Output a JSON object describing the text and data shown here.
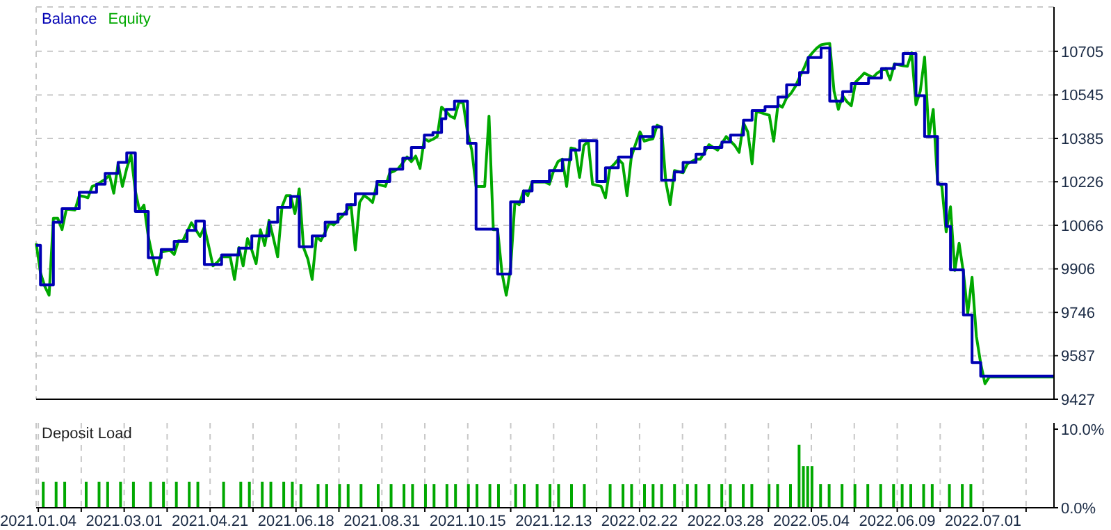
{
  "chart_data": [
    {
      "type": "line",
      "legend": "top left",
      "grid": true,
      "tick_labels": "y",
      "categories": [
        "2021.01.04",
        null,
        null,
        null,
        null,
        null,
        null,
        null,
        null,
        null,
        null,
        null,
        null,
        null,
        null,
        null,
        null,
        null,
        null,
        null,
        "2021.03.01",
        null,
        null,
        null,
        null,
        null,
        null,
        null,
        null,
        null,
        null,
        null,
        null,
        null,
        null,
        null,
        null,
        null,
        null,
        null,
        "2021.04.21",
        null,
        null,
        null,
        null,
        null,
        null,
        null,
        null,
        null,
        null,
        null,
        null,
        null,
        null,
        null,
        null,
        null,
        null,
        null,
        "2021.06.18",
        null,
        null,
        null,
        null,
        null,
        null,
        null,
        null,
        null,
        null,
        null,
        null,
        null,
        null,
        null,
        null,
        null,
        null,
        null,
        "2021.08.31",
        null,
        null,
        null,
        null,
        null,
        null,
        null,
        null,
        null,
        null,
        null,
        null,
        null,
        null,
        null,
        null,
        null,
        null,
        null,
        "2021.10.15",
        null,
        null,
        null,
        null,
        null,
        null,
        null,
        null,
        null,
        null,
        null,
        null,
        null,
        null,
        null,
        null,
        null,
        null,
        null,
        "2021.12.13",
        null,
        null,
        null,
        null,
        null,
        null,
        null,
        null,
        null,
        null,
        null,
        null,
        null,
        null,
        null,
        null,
        null,
        null,
        null,
        "2022.02.22",
        null,
        null,
        null,
        null,
        null,
        null,
        null,
        null,
        null,
        null,
        null,
        null,
        null,
        null,
        null,
        null,
        null,
        null,
        null,
        "2022.03.28",
        null,
        null,
        null,
        null,
        null,
        null,
        null,
        null,
        null,
        null,
        null,
        null,
        null,
        null,
        null,
        null,
        null,
        null,
        null,
        "2022.05.04",
        null,
        null,
        null,
        null,
        null,
        null,
        null,
        null,
        null,
        null,
        null,
        null,
        null,
        null,
        null,
        null,
        null,
        null,
        null,
        "2022.06.09",
        null,
        null,
        null,
        null,
        null,
        null,
        null,
        null,
        null,
        null,
        null,
        null,
        null,
        null,
        null,
        null,
        null,
        null,
        null,
        "2022.07.01",
        null,
        null,
        null,
        null,
        null,
        null,
        null,
        null,
        null,
        null,
        null,
        null,
        null,
        null,
        null,
        null
      ],
      "ylim": [
        9427,
        10868
      ],
      "yticks": [
        9427,
        9587,
        9746,
        9906,
        10066,
        10226,
        10385,
        10545,
        10705
      ],
      "series": [
        {
          "name": "Balance",
          "type": "step",
          "color": "#0000b4",
          "values": [
            9992,
            9847,
            9847,
            9847,
            10077,
            10077,
            10127,
            10127,
            10127,
            10127,
            10187,
            10187,
            10187,
            10187,
            10217,
            10217,
            10257,
            10257,
            10257,
            10297,
            10297,
            10332,
            10332,
            10117,
            10117,
            10117,
            9947,
            9947,
            9947,
            9977,
            9977,
            9977,
            10007,
            10007,
            10007,
            10047,
            10047,
            10082,
            10082,
            9922,
            9922,
            9922,
            9922,
            9957,
            9957,
            9957,
            9957,
            9982,
            9982,
            9982,
            10027,
            10027,
            10027,
            10027,
            10077,
            10077,
            10132,
            10132,
            10132,
            10172,
            10172,
            9987,
            9987,
            9987,
            10027,
            10027,
            10027,
            10077,
            10077,
            10077,
            10107,
            10107,
            10142,
            10142,
            10182,
            10182,
            10182,
            10182,
            10182,
            10227,
            10227,
            10227,
            10272,
            10272,
            10272,
            10312,
            10312,
            10352,
            10352,
            10352,
            10397,
            10397,
            10407,
            10407,
            10457,
            10492,
            10492,
            10522,
            10522,
            10522,
            10367,
            10367,
            10052,
            10052,
            10052,
            10052,
            10052,
            9887,
            9887,
            9887,
            10152,
            10152,
            10152,
            10192,
            10192,
            10227,
            10227,
            10227,
            10227,
            10267,
            10267,
            10267,
            10307,
            10307,
            10342,
            10342,
            10377,
            10377,
            10377,
            10377,
            10227,
            10227,
            10277,
            10277,
            10277,
            10317,
            10317,
            10317,
            10347,
            10347,
            10392,
            10392,
            10392,
            10427,
            10427,
            10232,
            10232,
            10232,
            10262,
            10262,
            10297,
            10297,
            10297,
            10327,
            10327,
            10352,
            10352,
            10352,
            10352,
            10372,
            10372,
            10397,
            10397,
            10397,
            10452,
            10452,
            10487,
            10487,
            10487,
            10502,
            10502,
            10502,
            10537,
            10537,
            10582,
            10582,
            10582,
            10627,
            10627,
            10682,
            10682,
            10682,
            10717,
            10717,
            10522,
            10522,
            10522,
            10557,
            10557,
            10587,
            10587,
            10587,
            10587,
            10607,
            10607,
            10607,
            10642,
            10642,
            10642,
            10657,
            10657,
            10697,
            10697,
            10697,
            10542,
            10542,
            10392,
            10392,
            10392,
            10217,
            10217,
            10062,
            9902,
            9902,
            9902,
            9737,
            9737,
            9562,
            9562,
            9512,
            9512,
            9512,
            9512,
            9512,
            9512,
            9512,
            9512,
            9512,
            9512,
            9512,
            9512,
            9512,
            9512,
            9512,
            9512,
            9512,
            9512
          ]
        },
        {
          "name": "Equity",
          "type": "line",
          "color": "#00a800",
          "values": [
            10000,
            9892,
            9842,
            9809,
            10092,
            10092,
            10050,
            10125,
            10124,
            10122,
            10175,
            10172,
            10167,
            10209,
            10214,
            10225,
            10235,
            10250,
            10184,
            10292,
            10209,
            10275,
            10325,
            10192,
            10117,
            10140,
            10025,
            9950,
            9884,
            9967,
            9971,
            9975,
            9959,
            10009,
            10009,
            10042,
            10075,
            10050,
            10025,
            10059,
            9990,
            9917,
            9930,
            9950,
            9950,
            9950,
            9867,
            9984,
            9917,
            10017,
            9975,
            9925,
            10050,
            9992,
            10084,
            10020,
            9950,
            10134,
            10175,
            10175,
            10109,
            10200,
            9984,
            9942,
            9867,
            10025,
            10009,
            10040,
            10075,
            10067,
            10085,
            10100,
            10120,
            10142,
            9975,
            10150,
            10175,
            10165,
            10150,
            10217,
            10213,
            10209,
            10259,
            10265,
            10275,
            10295,
            10317,
            10300,
            10320,
            10275,
            10384,
            10375,
            10382,
            10392,
            10500,
            10485,
            10467,
            10459,
            10517,
            10517,
            10409,
            10342,
            10209,
            10209,
            10209,
            10467,
            10050,
            10050,
            9892,
            9809,
            9909,
            10150,
            10142,
            10192,
            10175,
            10225,
            10225,
            10225,
            10225,
            10217,
            10267,
            10300,
            10309,
            10209,
            10350,
            10346,
            10242,
            10359,
            10375,
            10217,
            10213,
            10209,
            10167,
            10275,
            10290,
            10309,
            10292,
            10175,
            10317,
            10365,
            10409,
            10375,
            10380,
            10384,
            10434,
            10425,
            10225,
            10142,
            10267,
            10263,
            10259,
            10292,
            10300,
            10309,
            10309,
            10335,
            10362,
            10352,
            10342,
            10367,
            10392,
            10375,
            10359,
            10334,
            10442,
            10409,
            10292,
            10484,
            10480,
            10475,
            10470,
            10375,
            10509,
            10500,
            10534,
            10550,
            10575,
            10610,
            10642,
            10680,
            10700,
            10717,
            10729,
            10732,
            10734,
            10559,
            10492,
            10542,
            10520,
            10505,
            10592,
            10608,
            10625,
            10617,
            10609,
            10625,
            10635,
            10642,
            10600,
            10659,
            10655,
            10652,
            10650,
            10700,
            10509,
            10559,
            10684,
            10392,
            10492,
            10225,
            10209,
            10042,
            10134,
            9900,
            10000,
            9892,
            9742,
            9875,
            9659,
            9559,
            9484,
            9509,
            9509,
            9509,
            9509,
            9509,
            9509,
            9509,
            9509,
            9509,
            9509,
            9509,
            9509,
            9509,
            9509,
            9509,
            9509
          ]
        }
      ]
    },
    {
      "type": "bar",
      "title": "Deposit Load",
      "grid": "x",
      "color": "#00a800",
      "categories": [
        "2021.01.04",
        null,
        null,
        null,
        null,
        null,
        null,
        null,
        null,
        null,
        null,
        null,
        null,
        null,
        null,
        null,
        null,
        null,
        null,
        null,
        "2021.03.01",
        null,
        null,
        null,
        null,
        null,
        null,
        null,
        null,
        null,
        null,
        null,
        null,
        null,
        null,
        null,
        null,
        null,
        null,
        null,
        "2021.04.21",
        null,
        null,
        null,
        null,
        null,
        null,
        null,
        null,
        null,
        null,
        null,
        null,
        null,
        null,
        null,
        null,
        null,
        null,
        null,
        "2021.06.18",
        null,
        null,
        null,
        null,
        null,
        null,
        null,
        null,
        null,
        null,
        null,
        null,
        null,
        null,
        null,
        null,
        null,
        null,
        null,
        "2021.08.31",
        null,
        null,
        null,
        null,
        null,
        null,
        null,
        null,
        null,
        null,
        null,
        null,
        null,
        null,
        null,
        null,
        null,
        null,
        null,
        "2021.10.15",
        null,
        null,
        null,
        null,
        null,
        null,
        null,
        null,
        null,
        null,
        null,
        null,
        null,
        null,
        null,
        null,
        null,
        null,
        null,
        "2021.12.13",
        null,
        null,
        null,
        null,
        null,
        null,
        null,
        null,
        null,
        null,
        null,
        null,
        null,
        null,
        null,
        null,
        null,
        null,
        null,
        "2022.02.22",
        null,
        null,
        null,
        null,
        null,
        null,
        null,
        null,
        null,
        null,
        null,
        null,
        null,
        null,
        null,
        null,
        null,
        null,
        null,
        "2022.03.28",
        null,
        null,
        null,
        null,
        null,
        null,
        null,
        null,
        null,
        null,
        null,
        null,
        null,
        null,
        null,
        null,
        null,
        null,
        null,
        "2022.05.04",
        null,
        null,
        null,
        null,
        null,
        null,
        null,
        null,
        null,
        null,
        null,
        null,
        null,
        null,
        null,
        null,
        null,
        null,
        null,
        "2022.06.09",
        null,
        null,
        null,
        null,
        null,
        null,
        null,
        null,
        null,
        null,
        null,
        null,
        null,
        null,
        null,
        null,
        null,
        null,
        null,
        "2022.07.01",
        null,
        null,
        null,
        null,
        null,
        null,
        null,
        null,
        null,
        null,
        null,
        null,
        null,
        null,
        null,
        null
      ],
      "ylim": [
        0,
        10.8
      ],
      "yticks": [
        {
          "value": 0,
          "label": "0.0%"
        },
        {
          "value": 10,
          "label": "10.0%"
        }
      ],
      "values": [
        null,
        3.3,
        null,
        null,
        3.3,
        null,
        3.3,
        null,
        null,
        null,
        null,
        3.3,
        null,
        null,
        3.3,
        null,
        3.3,
        null,
        null,
        3.3,
        null,
        null,
        3.3,
        null,
        null,
        null,
        3.3,
        null,
        null,
        3.3,
        null,
        null,
        3.3,
        null,
        null,
        3.3,
        null,
        3.3,
        null,
        null,
        null,
        null,
        null,
        3.3,
        null,
        null,
        null,
        3.3,
        null,
        3.3,
        null,
        null,
        3.3,
        null,
        3.3,
        null,
        null,
        3.3,
        null,
        3.3,
        null,
        3.0,
        null,
        null,
        null,
        3.0,
        null,
        3.0,
        null,
        null,
        3.0,
        null,
        3.0,
        null,
        null,
        3.0,
        null,
        null,
        null,
        3.0,
        null,
        null,
        3.0,
        null,
        null,
        3.0,
        null,
        3.0,
        null,
        null,
        3.0,
        null,
        3.0,
        null,
        null,
        3.0,
        null,
        3.0,
        null,
        null,
        3.0,
        null,
        3.0,
        null,
        null,
        3.0,
        null,
        3.0,
        null,
        null,
        null,
        3.0,
        null,
        3.0,
        null,
        null,
        3.0,
        null,
        null,
        3.0,
        null,
        3.0,
        null,
        null,
        3.0,
        null,
        null,
        3.0,
        null,
        null,
        null,
        null,
        null,
        3.0,
        null,
        null,
        3.0,
        null,
        3.0,
        null,
        null,
        3.0,
        null,
        3.0,
        null,
        3.0,
        null,
        null,
        3.0,
        null,
        null,
        3.0,
        null,
        3.0,
        null,
        null,
        3.0,
        null,
        null,
        3.0,
        null,
        3.0,
        null,
        null,
        3.0,
        null,
        3.0,
        null,
        null,
        null,
        3.0,
        null,
        3.0,
        null,
        null,
        3.0,
        null,
        8.0,
        5.3,
        5.3,
        5.3,
        null,
        3.0,
        null,
        3.0,
        null,
        null,
        3.0,
        null,
        null,
        3.0,
        null,
        null,
        3.0,
        null,
        null,
        3.0,
        null,
        null,
        3.0,
        null,
        3.0,
        null,
        3.0,
        null,
        null,
        3.0,
        null,
        3.0,
        null,
        null,
        null,
        3.0,
        null,
        null,
        3.0,
        null,
        3.0,
        null,
        null,
        null,
        null,
        null,
        null,
        null,
        null,
        null,
        null,
        null,
        null,
        null,
        null,
        null,
        null,
        null,
        null,
        null
      ]
    }
  ]
}
